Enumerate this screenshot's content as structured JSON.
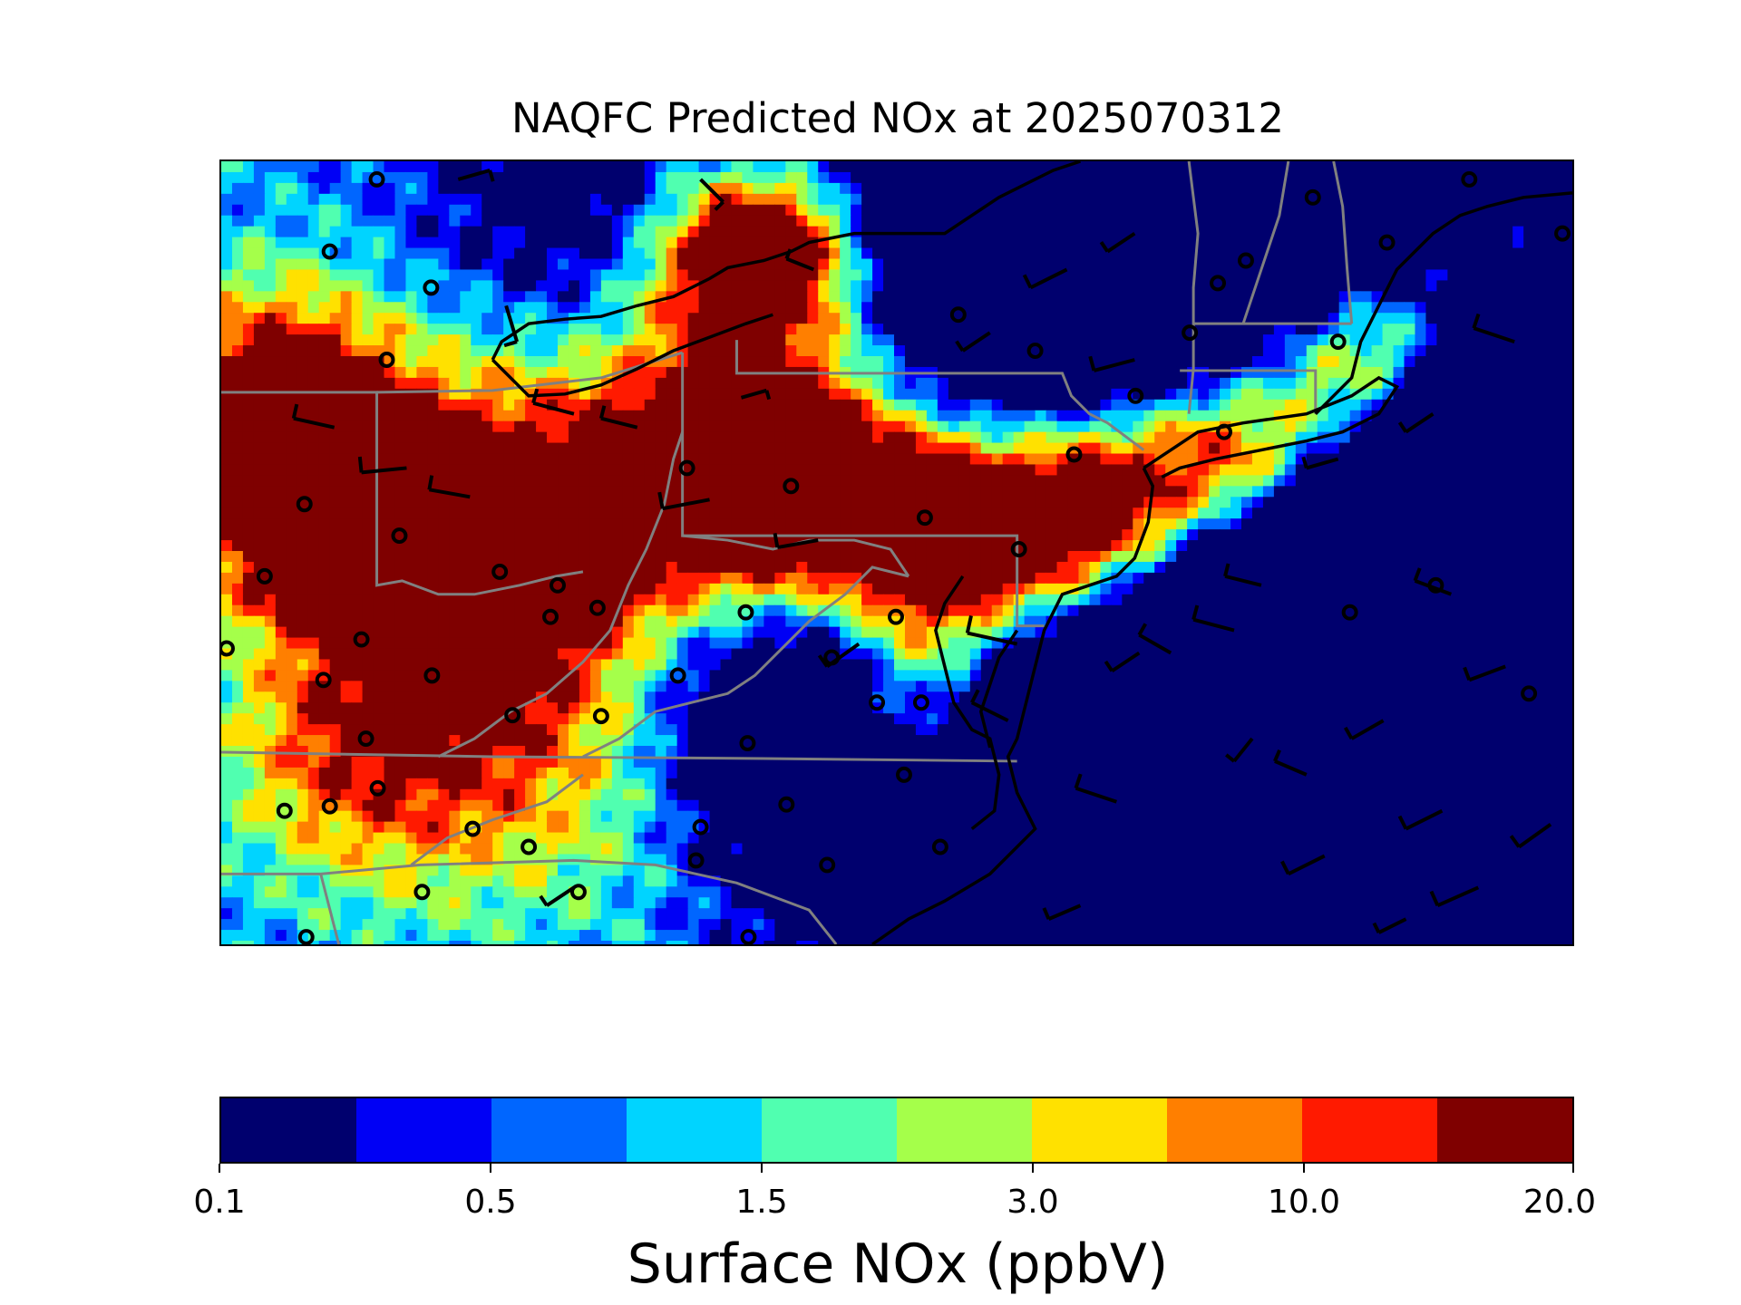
{
  "title": "NAQFC Predicted NOx at 2025070312",
  "colorbar": {
    "label": "Surface NOx (ppbV)",
    "tick_labels": [
      "0.1",
      "0.5",
      "1.5",
      "3.0",
      "10.0",
      "20.0"
    ],
    "colors": [
      "#00006e",
      "#0000f5",
      "#0066ff",
      "#00d4ff",
      "#50ffb0",
      "#a5ff4a",
      "#ffe100",
      "#ff7f00",
      "#ff1a00",
      "#7f0000"
    ]
  },
  "map": {
    "region": "Mid-Atlantic / Northeast US",
    "layers": [
      "nox-concentration-grid",
      "state-borders",
      "coastlines",
      "wind-barbs",
      "monitor-sites"
    ]
  }
}
